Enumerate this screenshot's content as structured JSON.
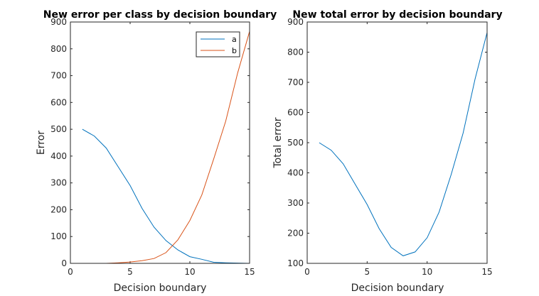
{
  "chart_data": [
    {
      "type": "line",
      "title": "New error per class by decision boundary",
      "xlabel": "Decision boundary",
      "ylabel": "Error",
      "xlim": [
        0,
        15
      ],
      "ylim": [
        0,
        900
      ],
      "xticks": [
        0,
        5,
        10,
        15
      ],
      "yticks": [
        0,
        100,
        200,
        300,
        400,
        500,
        600,
        700,
        800,
        900
      ],
      "grid": false,
      "legend": "top-right",
      "x": [
        1,
        2,
        3,
        4,
        5,
        6,
        7,
        8,
        9,
        10,
        11,
        12,
        13,
        14,
        15
      ],
      "series": [
        {
          "name": "a",
          "color": "#0072BD",
          "values": [
            500,
            475,
            430,
            360,
            290,
            205,
            135,
            85,
            50,
            25,
            15,
            4,
            2,
            1,
            0
          ]
        },
        {
          "name": "b",
          "color": "#D95319",
          "values": [
            0,
            0,
            0,
            2,
            5,
            10,
            18,
            40,
            88,
            160,
            255,
            390,
            530,
            710,
            865
          ]
        }
      ]
    },
    {
      "type": "line",
      "title": "New total error by decision boundary",
      "xlabel": "Decision boundary",
      "ylabel": "Total error",
      "xlim": [
        0,
        15
      ],
      "ylim": [
        100,
        900
      ],
      "xticks": [
        0,
        5,
        10,
        15
      ],
      "yticks": [
        100,
        200,
        300,
        400,
        500,
        600,
        700,
        800,
        900
      ],
      "grid": false,
      "x": [
        1,
        2,
        3,
        4,
        5,
        6,
        7,
        8,
        9,
        10,
        11,
        12,
        13,
        14,
        15
      ],
      "series": [
        {
          "color": "#0072BD",
          "values": [
            500,
            475,
            430,
            362,
            295,
            215,
            153,
            125,
            138,
            185,
            270,
            394,
            532,
            711,
            865
          ]
        }
      ]
    }
  ]
}
